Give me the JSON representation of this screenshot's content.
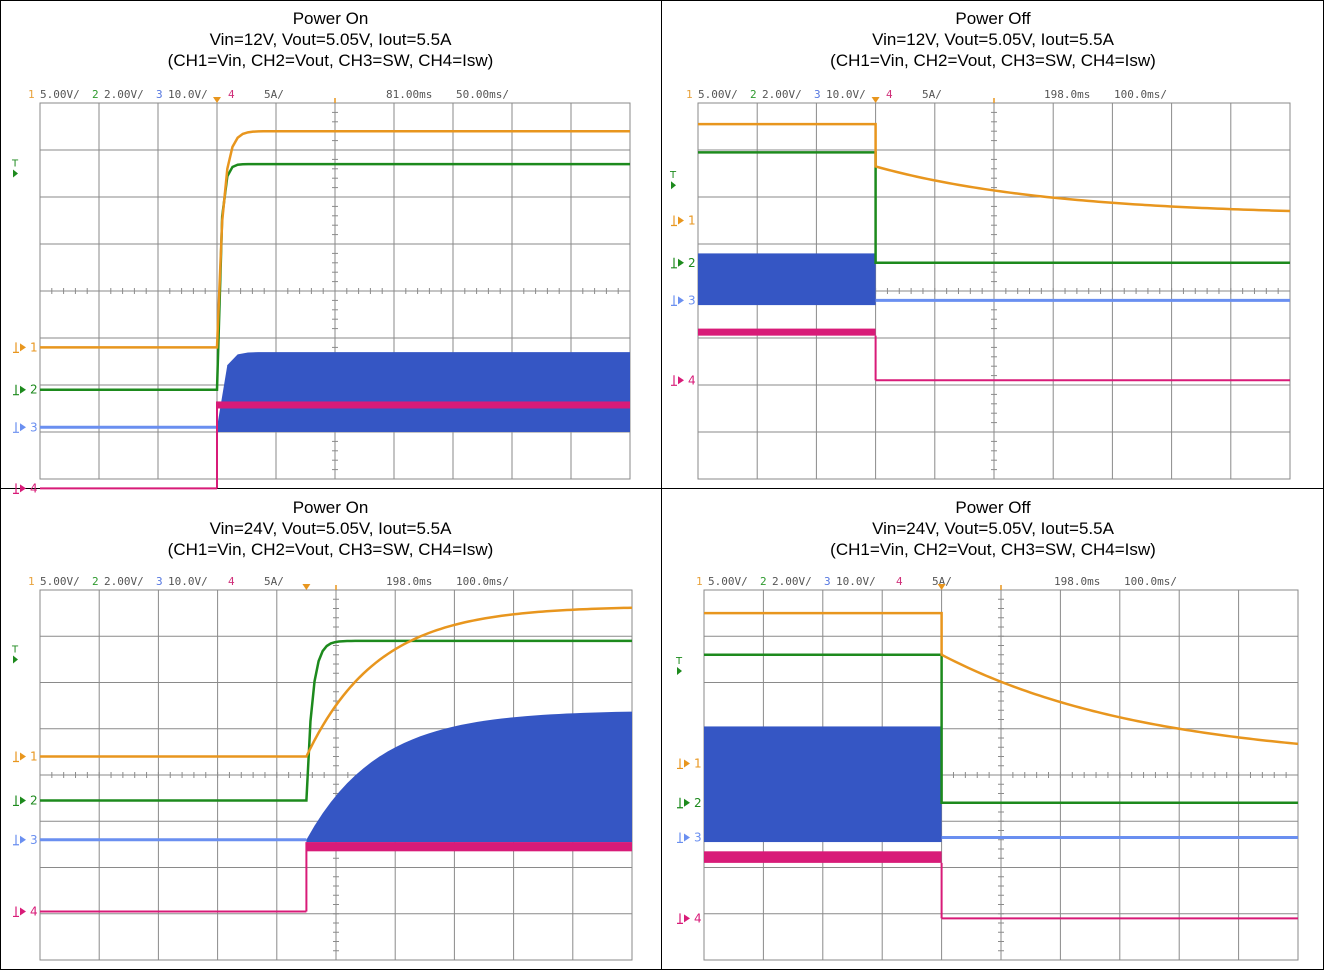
{
  "colors": {
    "ch1": "#e8961e",
    "ch2": "#1d8a1d",
    "ch3_fill": "#3556c4",
    "ch3_line": "#6a8ff0",
    "ch4": "#d81b78",
    "grid": "#8a8a8a",
    "marker": "#e8961e"
  },
  "panels": [
    {
      "title": "Power On",
      "conditions": "Vin=12V, Vout=5.05V, Iout=5.5A",
      "channels": "(CH1=Vin, CH2=Vout, CH3=SW, CH4=Isw)",
      "scope": {
        "ch1_num": "1",
        "ch1_scale": "5.00V/",
        "ch2_num": "2",
        "ch2_scale": "2.00V/",
        "ch3_num": "3",
        "ch3_scale": "10.0V/",
        "ch4_num": "4",
        "ch4_scale": "5A/",
        "delay": "81.00ms",
        "timebase": "50.00ms/"
      },
      "markers": {
        "m1": "1",
        "m2": "2",
        "m3": "3",
        "m4": "4",
        "trig": "T"
      }
    },
    {
      "title": "Power Off",
      "conditions": "Vin=12V, Vout=5.05V, Iout=5.5A",
      "channels": "(CH1=Vin, CH2=Vout, CH3=SW, CH4=Isw)",
      "scope": {
        "ch1_num": "1",
        "ch1_scale": "5.00V/",
        "ch2_num": "2",
        "ch2_scale": "2.00V/",
        "ch3_num": "3",
        "ch3_scale": "10.0V/",
        "ch4_num": "4",
        "ch4_scale": "5A/",
        "delay": "198.0ms",
        "timebase": "100.0ms/"
      },
      "markers": {
        "m1": "1",
        "m2": "2",
        "m3": "3",
        "m4": "4",
        "trig": "T"
      }
    },
    {
      "title": "Power On",
      "conditions": "Vin=24V, Vout=5.05V, Iout=5.5A",
      "channels": "(CH1=Vin, CH2=Vout, CH3=SW, CH4=Isw)",
      "scope": {
        "ch1_num": "1",
        "ch1_scale": "5.00V/",
        "ch2_num": "2",
        "ch2_scale": "2.00V/",
        "ch3_num": "3",
        "ch3_scale": "10.0V/",
        "ch4_num": "4",
        "ch4_scale": "5A/",
        "delay": "198.0ms",
        "timebase": "100.0ms/"
      },
      "markers": {
        "m1": "1",
        "m2": "2",
        "m3": "3",
        "m4": "4",
        "trig": "T"
      }
    },
    {
      "title": "Power Off",
      "conditions": "Vin=24V, Vout=5.05V, Iout=5.5A",
      "channels": "(CH1=Vin, CH2=Vout, CH3=SW, CH4=Isw)",
      "scope": {
        "ch1_num": "1",
        "ch1_scale": "5.00V/",
        "ch2_num": "2",
        "ch2_scale": "2.00V/",
        "ch3_num": "3",
        "ch3_scale": "10.0V/",
        "ch4_num": "4",
        "ch4_scale": "5A/",
        "delay": "198.0ms",
        "timebase": "100.0ms/"
      },
      "markers": {
        "m1": "1",
        "m2": "2",
        "m3": "3",
        "m4": "4",
        "trig": "T"
      }
    }
  ],
  "chart_data": [
    {
      "type": "line",
      "title": "Power On",
      "subtitle": "Vin=12V, Vout=5.05V, Iout=5.5A",
      "event": "on",
      "event_div": 3.0,
      "grid": true,
      "x_divisions": 10,
      "y_divisions": 8,
      "series": [
        {
          "name": "CH1",
          "ground_div": 5.2,
          "level_before": 5.2,
          "level_after": 0.6,
          "tau_div": 0.1
        },
        {
          "name": "CH2",
          "ground_div": 6.1,
          "level_before": 6.1,
          "level_after": 1.3,
          "tau_div": 0.06
        },
        {
          "name": "CH3",
          "ground_div": 6.9,
          "level_before": 6.9,
          "level_after": 5.3,
          "band_bottom": 7.0
        },
        {
          "name": "CH4",
          "ground_div": 8.2,
          "level_before": 8.2,
          "level_after": 6.5,
          "band_top": 6.35
        }
      ]
    },
    {
      "type": "line",
      "title": "Power Off",
      "subtitle": "Vin=12V, Vout=5.05V, Iout=5.5A",
      "event": "off",
      "event_div": 3.0,
      "grid": true,
      "x_divisions": 10,
      "y_divisions": 8,
      "series": [
        {
          "name": "CH1",
          "ground_div": 2.5,
          "level_before": 0.45,
          "level_after": 2.4,
          "tau_div": 3.0
        },
        {
          "name": "CH2",
          "ground_div": 3.4,
          "level_before": 1.05,
          "level_after": 3.4,
          "tau_div": 0.0
        },
        {
          "name": "CH3",
          "ground_div": 4.2,
          "level_before": 3.2,
          "level_after": 4.2,
          "band_bottom": 4.3
        },
        {
          "name": "CH4",
          "ground_div": 5.9,
          "level_before": 4.95,
          "level_after": 5.9,
          "band_top": 4.8
        }
      ]
    },
    {
      "type": "line",
      "title": "Power On",
      "subtitle": "Vin=24V, Vout=5.05V, Iout=5.5A",
      "event": "on",
      "event_div": 4.5,
      "grid": true,
      "x_divisions": 10,
      "y_divisions": 8,
      "series": [
        {
          "name": "CH1",
          "ground_div": 3.6,
          "level_before": 3.6,
          "level_after": 0.35,
          "tau_div": 1.2
        },
        {
          "name": "CH2",
          "ground_div": 4.55,
          "level_before": 4.55,
          "level_after": 1.1,
          "tau_div": 0.1
        },
        {
          "name": "CH3",
          "ground_div": 5.4,
          "level_before": 5.4,
          "level_after": 2.6,
          "band_bottom": 5.45
        },
        {
          "name": "CH4",
          "ground_div": 6.95,
          "level_before": 6.95,
          "level_after": 5.65,
          "band_top": 5.45
        }
      ]
    },
    {
      "type": "line",
      "title": "Power Off",
      "subtitle": "Vin=24V, Vout=5.05V, Iout=5.5A",
      "event": "off",
      "event_div": 4.0,
      "grid": true,
      "x_divisions": 10,
      "y_divisions": 8,
      "series": [
        {
          "name": "CH1",
          "ground_div": 3.75,
          "level_before": 0.5,
          "level_after": 3.75,
          "tau_div": 3.5
        },
        {
          "name": "CH2",
          "ground_div": 4.6,
          "level_before": 1.4,
          "level_after": 4.6,
          "tau_div": 0.0
        },
        {
          "name": "CH3",
          "ground_div": 5.35,
          "level_before": 2.95,
          "level_after": 5.35,
          "band_bottom": 5.45
        },
        {
          "name": "CH4",
          "ground_div": 7.1,
          "level_before": 5.9,
          "level_after": 7.1,
          "band_top": 5.65
        }
      ]
    }
  ]
}
